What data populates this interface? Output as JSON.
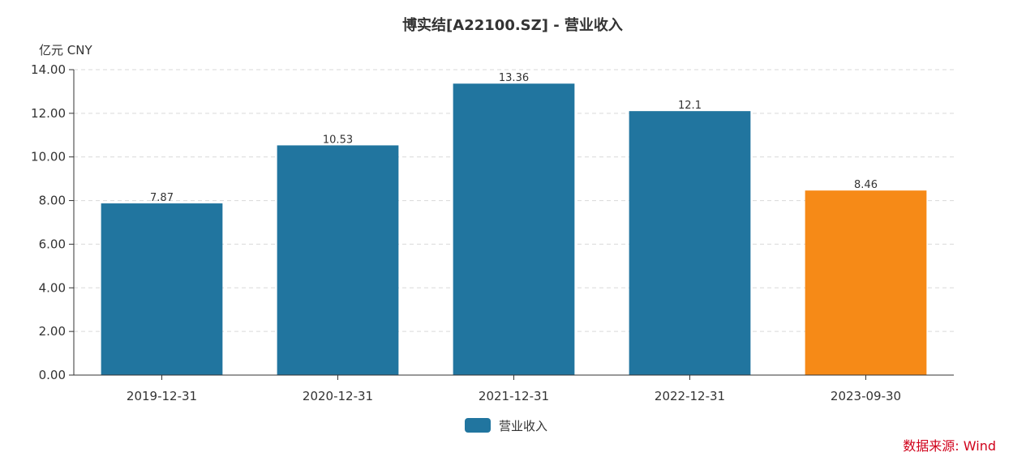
{
  "chart_data": {
    "type": "bar",
    "title": "博实结[A22100.SZ] - 营业收入",
    "ylabel": "亿元  CNY",
    "categories": [
      "2019-12-31",
      "2020-12-31",
      "2021-12-31",
      "2022-12-31",
      "2023-09-30"
    ],
    "series": [
      {
        "name": "营业收入",
        "values": [
          7.87,
          10.53,
          13.36,
          12.1,
          8.46
        ],
        "labels": [
          "7.87",
          "10.53",
          "13.36",
          "12.1",
          "8.46"
        ]
      }
    ],
    "bar_colors": [
      "#21759f",
      "#21759f",
      "#21759f",
      "#21759f",
      "#f68a17"
    ],
    "ylim": [
      0,
      14
    ],
    "yticks": [
      "0.00",
      "2.00",
      "4.00",
      "6.00",
      "8.00",
      "10.00",
      "12.00",
      "14.00"
    ],
    "grid": true,
    "legend_position": "bottom-center",
    "source": "数据来源: Wind"
  }
}
